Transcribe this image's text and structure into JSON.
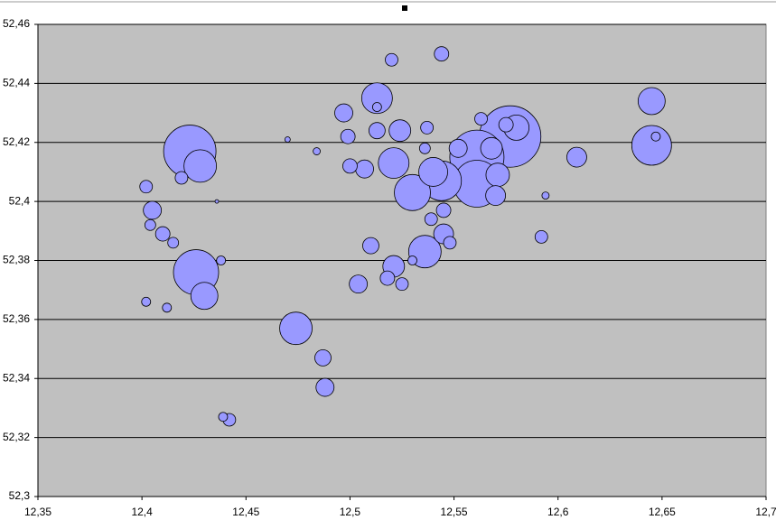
{
  "chart_data": {
    "type": "bubble",
    "color": "#9999ff",
    "grid": true,
    "xlim": [
      12.35,
      12.7
    ],
    "ylim": [
      52.3,
      52.46
    ],
    "xticks": [
      {
        "value": 12.35,
        "label": "12,35"
      },
      {
        "value": 12.4,
        "label": "12,4"
      },
      {
        "value": 12.45,
        "label": "12,45"
      },
      {
        "value": 12.5,
        "label": "12,5"
      },
      {
        "value": 12.55,
        "label": "12,55"
      },
      {
        "value": 12.6,
        "label": "12,6"
      },
      {
        "value": 12.65,
        "label": "12,65"
      },
      {
        "value": 12.7,
        "label": "12,7"
      }
    ],
    "yticks": [
      {
        "value": 52.3,
        "label": "52,3"
      },
      {
        "value": 52.32,
        "label": "52,32"
      },
      {
        "value": 52.34,
        "label": "52,34"
      },
      {
        "value": 52.36,
        "label": "52,36"
      },
      {
        "value": 52.38,
        "label": "52,38"
      },
      {
        "value": 52.4,
        "label": "52,4"
      },
      {
        "value": 52.42,
        "label": "52,42"
      },
      {
        "value": 52.44,
        "label": "52,44"
      },
      {
        "value": 52.46,
        "label": "52,46"
      }
    ],
    "x": [
      12.577,
      12.561,
      12.423,
      12.561,
      12.426,
      12.544,
      12.645,
      12.53,
      12.428,
      12.474,
      12.536,
      12.513,
      12.521,
      12.54,
      12.43,
      12.645,
      12.58,
      12.571,
      12.524,
      12.521,
      12.568,
      12.545,
      12.57,
      12.609,
      12.405,
      12.488,
      12.497,
      12.507,
      12.504,
      12.552,
      12.487,
      12.513,
      12.51,
      12.41,
      12.544,
      12.499,
      12.5,
      12.518,
      12.545,
      12.575,
      12.402,
      12.419,
      12.442,
      12.52,
      12.525,
      12.539,
      12.548,
      12.563,
      12.592,
      12.537,
      12.404,
      12.415,
      12.536,
      12.402,
      12.412,
      12.438,
      12.439,
      12.53,
      12.513,
      12.647,
      12.484,
      12.594,
      12.47,
      12.436
    ],
    "values": [
      52.422,
      52.415,
      52.417,
      52.406,
      52.376,
      52.407,
      52.419,
      52.403,
      52.412,
      52.357,
      52.383,
      52.435,
      52.413,
      52.41,
      52.368,
      52.434,
      52.425,
      52.409,
      52.424,
      52.378,
      52.418,
      52.389,
      52.402,
      52.415,
      52.397,
      52.337,
      52.43,
      52.411,
      52.372,
      52.418,
      52.347,
      52.424,
      52.385,
      52.389,
      52.45,
      52.422,
      52.412,
      52.374,
      52.397,
      52.426,
      52.405,
      52.408,
      52.326,
      52.448,
      52.372,
      52.394,
      52.386,
      52.428,
      52.388,
      52.425,
      52.392,
      52.386,
      52.418,
      52.366,
      52.364,
      52.38,
      52.327,
      52.38,
      52.432,
      52.422,
      52.417,
      52.402,
      52.421,
      52.4
    ],
    "sizes": [
      1156,
      900,
      841,
      676,
      625,
      484,
      484,
      400,
      324,
      324,
      324,
      289,
      289,
      256,
      225,
      225,
      196,
      169,
      144,
      144,
      144,
      121,
      121,
      121,
      100,
      100,
      100,
      100,
      100,
      100,
      81,
      81,
      81,
      64,
      64,
      64,
      64,
      64,
      64,
      64,
      49,
      49,
      49,
      49,
      49,
      49,
      49,
      49,
      49,
      49,
      36,
      36,
      36,
      25,
      25,
      25,
      25,
      25,
      25,
      25,
      16,
      16,
      9,
      4
    ]
  }
}
